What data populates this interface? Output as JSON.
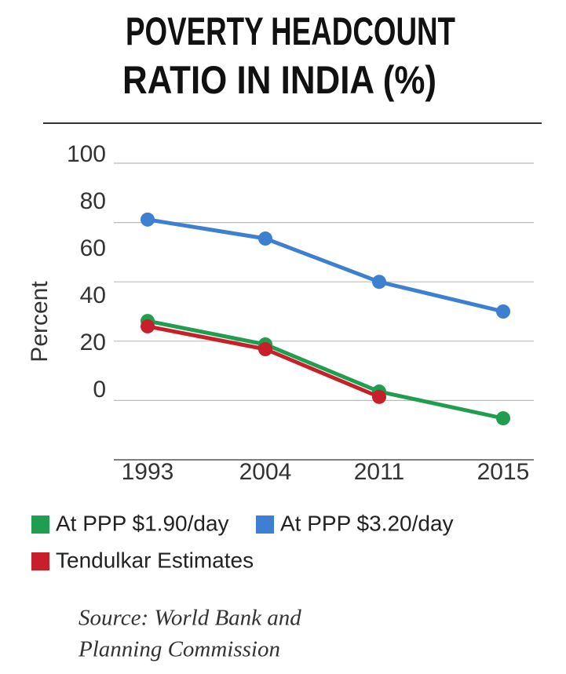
{
  "chart_data": {
    "type": "line",
    "title": [
      "POVERTY HEADCOUNT",
      "RATIO IN INDIA (%)"
    ],
    "y_label": "Percent",
    "categories": [
      "1993",
      "2004",
      "2011",
      "2015"
    ],
    "series": [
      {
        "name": "At PPP $1.90/day",
        "color": "#1e9e4e",
        "values": [
          46.8,
          38.9,
          23,
          14
        ]
      },
      {
        "name": "At PPP $3.20/day",
        "color": "#3d7fd1",
        "values": [
          81,
          74.6,
          60,
          50
        ]
      },
      {
        "name": "Tendulkar Estimates",
        "color": "#c7202b",
        "values": [
          45,
          37.3,
          21.2,
          null
        ]
      }
    ],
    "ylim": [
      0,
      100
    ],
    "yticks": [
      100,
      80,
      60,
      40,
      20,
      0
    ],
    "grid": true,
    "source": [
      "Source: World Bank and",
      "Planning Commission"
    ]
  }
}
